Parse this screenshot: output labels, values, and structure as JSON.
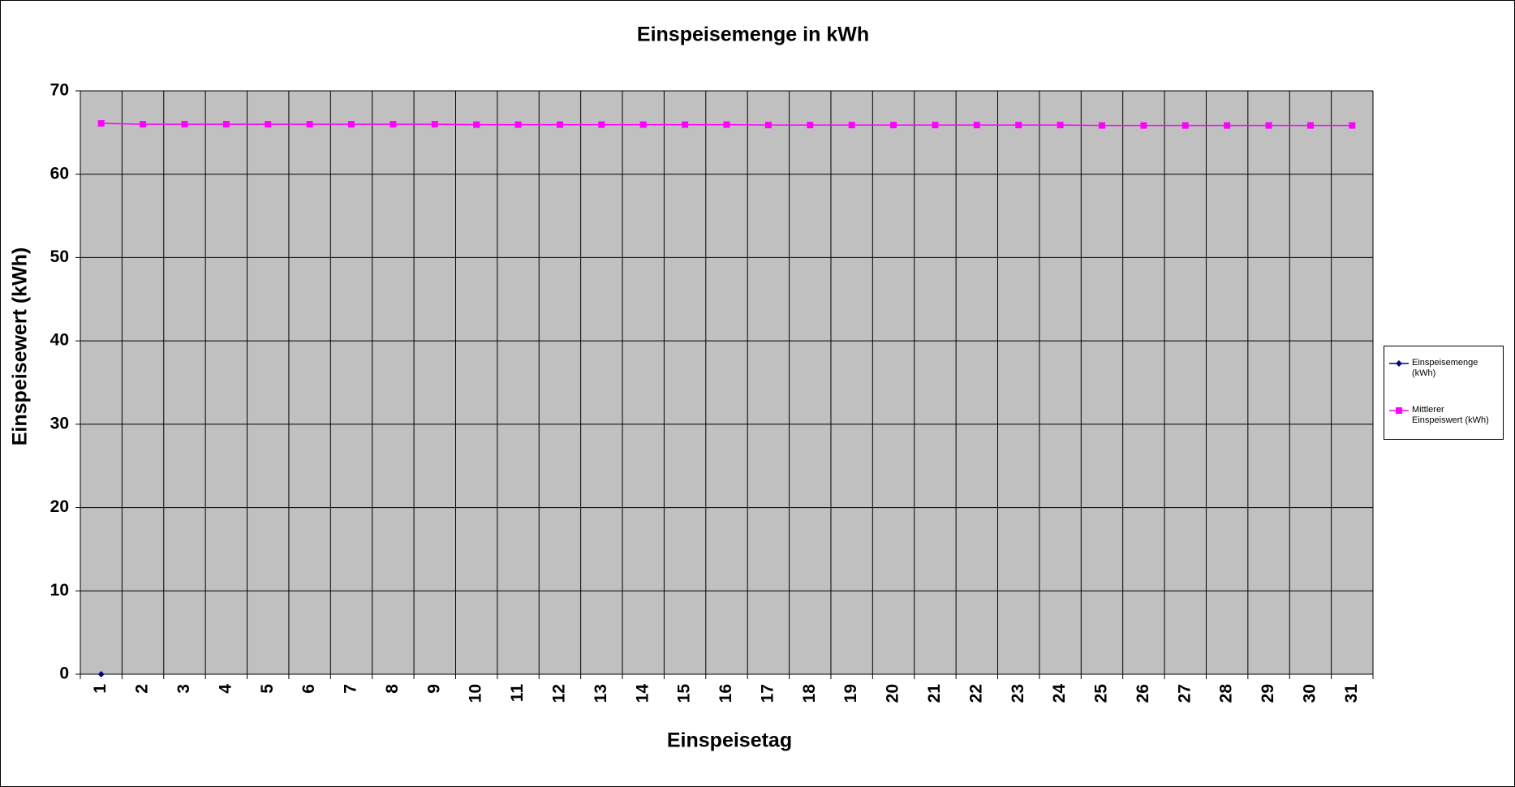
{
  "chart_data": {
    "type": "line",
    "title": "Einspeisemenge in kWh",
    "x_label": "Einspeisetag",
    "y_label": "Einspeisewert  (kWh)",
    "categories": [
      "1",
      "2",
      "3",
      "4",
      "5",
      "6",
      "7",
      "8",
      "9",
      "10",
      "11",
      "12",
      "13",
      "14",
      "15",
      "16",
      "17",
      "18",
      "19",
      "20",
      "21",
      "22",
      "23",
      "24",
      "25",
      "26",
      "27",
      "28",
      "29",
      "30",
      "31"
    ],
    "series": [
      {
        "name": "Einspeisemenge (kWh)",
        "color": "#000080",
        "marker": "diamond",
        "values": [
          0,
          null,
          null,
          null,
          null,
          null,
          null,
          null,
          null,
          null,
          null,
          null,
          null,
          null,
          null,
          null,
          null,
          null,
          null,
          null,
          null,
          null,
          null,
          null,
          null,
          null,
          null,
          null,
          null,
          null,
          null
        ]
      },
      {
        "name": "Mittlerer Einspeiswert (kWh)",
        "color": "#ff00ff",
        "marker": "square",
        "values": [
          66.1,
          66.0,
          66.0,
          66.0,
          66.0,
          66.0,
          66.0,
          66.0,
          66.0,
          65.95,
          65.95,
          65.95,
          65.95,
          65.95,
          65.95,
          65.95,
          65.9,
          65.9,
          65.9,
          65.9,
          65.9,
          65.9,
          65.9,
          65.9,
          65.85,
          65.85,
          65.85,
          65.85,
          65.85,
          65.85,
          65.85
        ]
      }
    ],
    "ylim": [
      0,
      70
    ],
    "yticks": [
      0,
      10,
      20,
      30,
      40,
      50,
      60,
      70
    ],
    "grid": true,
    "legend": "right"
  }
}
